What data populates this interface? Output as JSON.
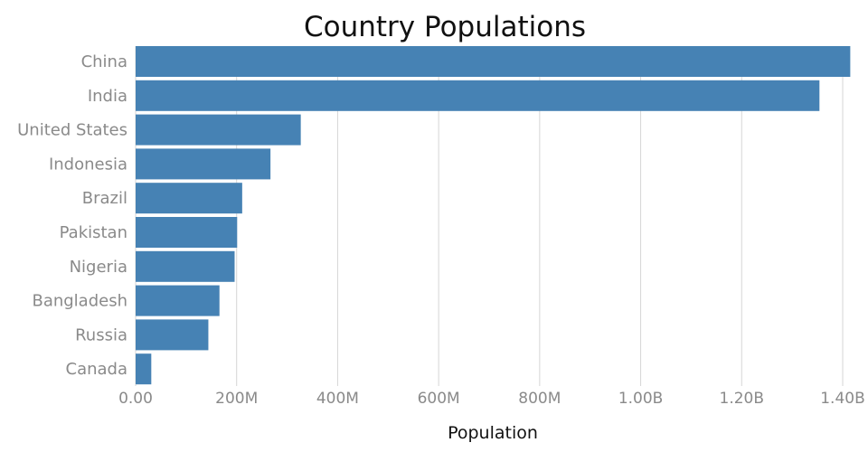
{
  "chart_data": {
    "type": "bar",
    "orientation": "horizontal",
    "title": "Country Populations",
    "xlabel": "Population",
    "ylabel": "",
    "categories": [
      "China",
      "India",
      "United States",
      "Indonesia",
      "Brazil",
      "Pakistan",
      "Nigeria",
      "Bangladesh",
      "Russia",
      "Canada"
    ],
    "values": [
      1415000000,
      1354000000,
      327000000,
      267000000,
      211000000,
      201000000,
      196000000,
      166000000,
      144000000,
      31000000
    ],
    "xlim": [
      0,
      1400000000
    ],
    "xticks": [
      {
        "value": 0,
        "label": "0.00"
      },
      {
        "value": 200000000,
        "label": "200M"
      },
      {
        "value": 400000000,
        "label": "400M"
      },
      {
        "value": 600000000,
        "label": "600M"
      },
      {
        "value": 800000000,
        "label": "800M"
      },
      {
        "value": 1000000000,
        "label": "1.00B"
      },
      {
        "value": 1200000000,
        "label": "1.20B"
      },
      {
        "value": 1400000000,
        "label": "1.40B"
      }
    ],
    "bar_color": "#4682b4",
    "grid": true,
    "legend": "none"
  }
}
